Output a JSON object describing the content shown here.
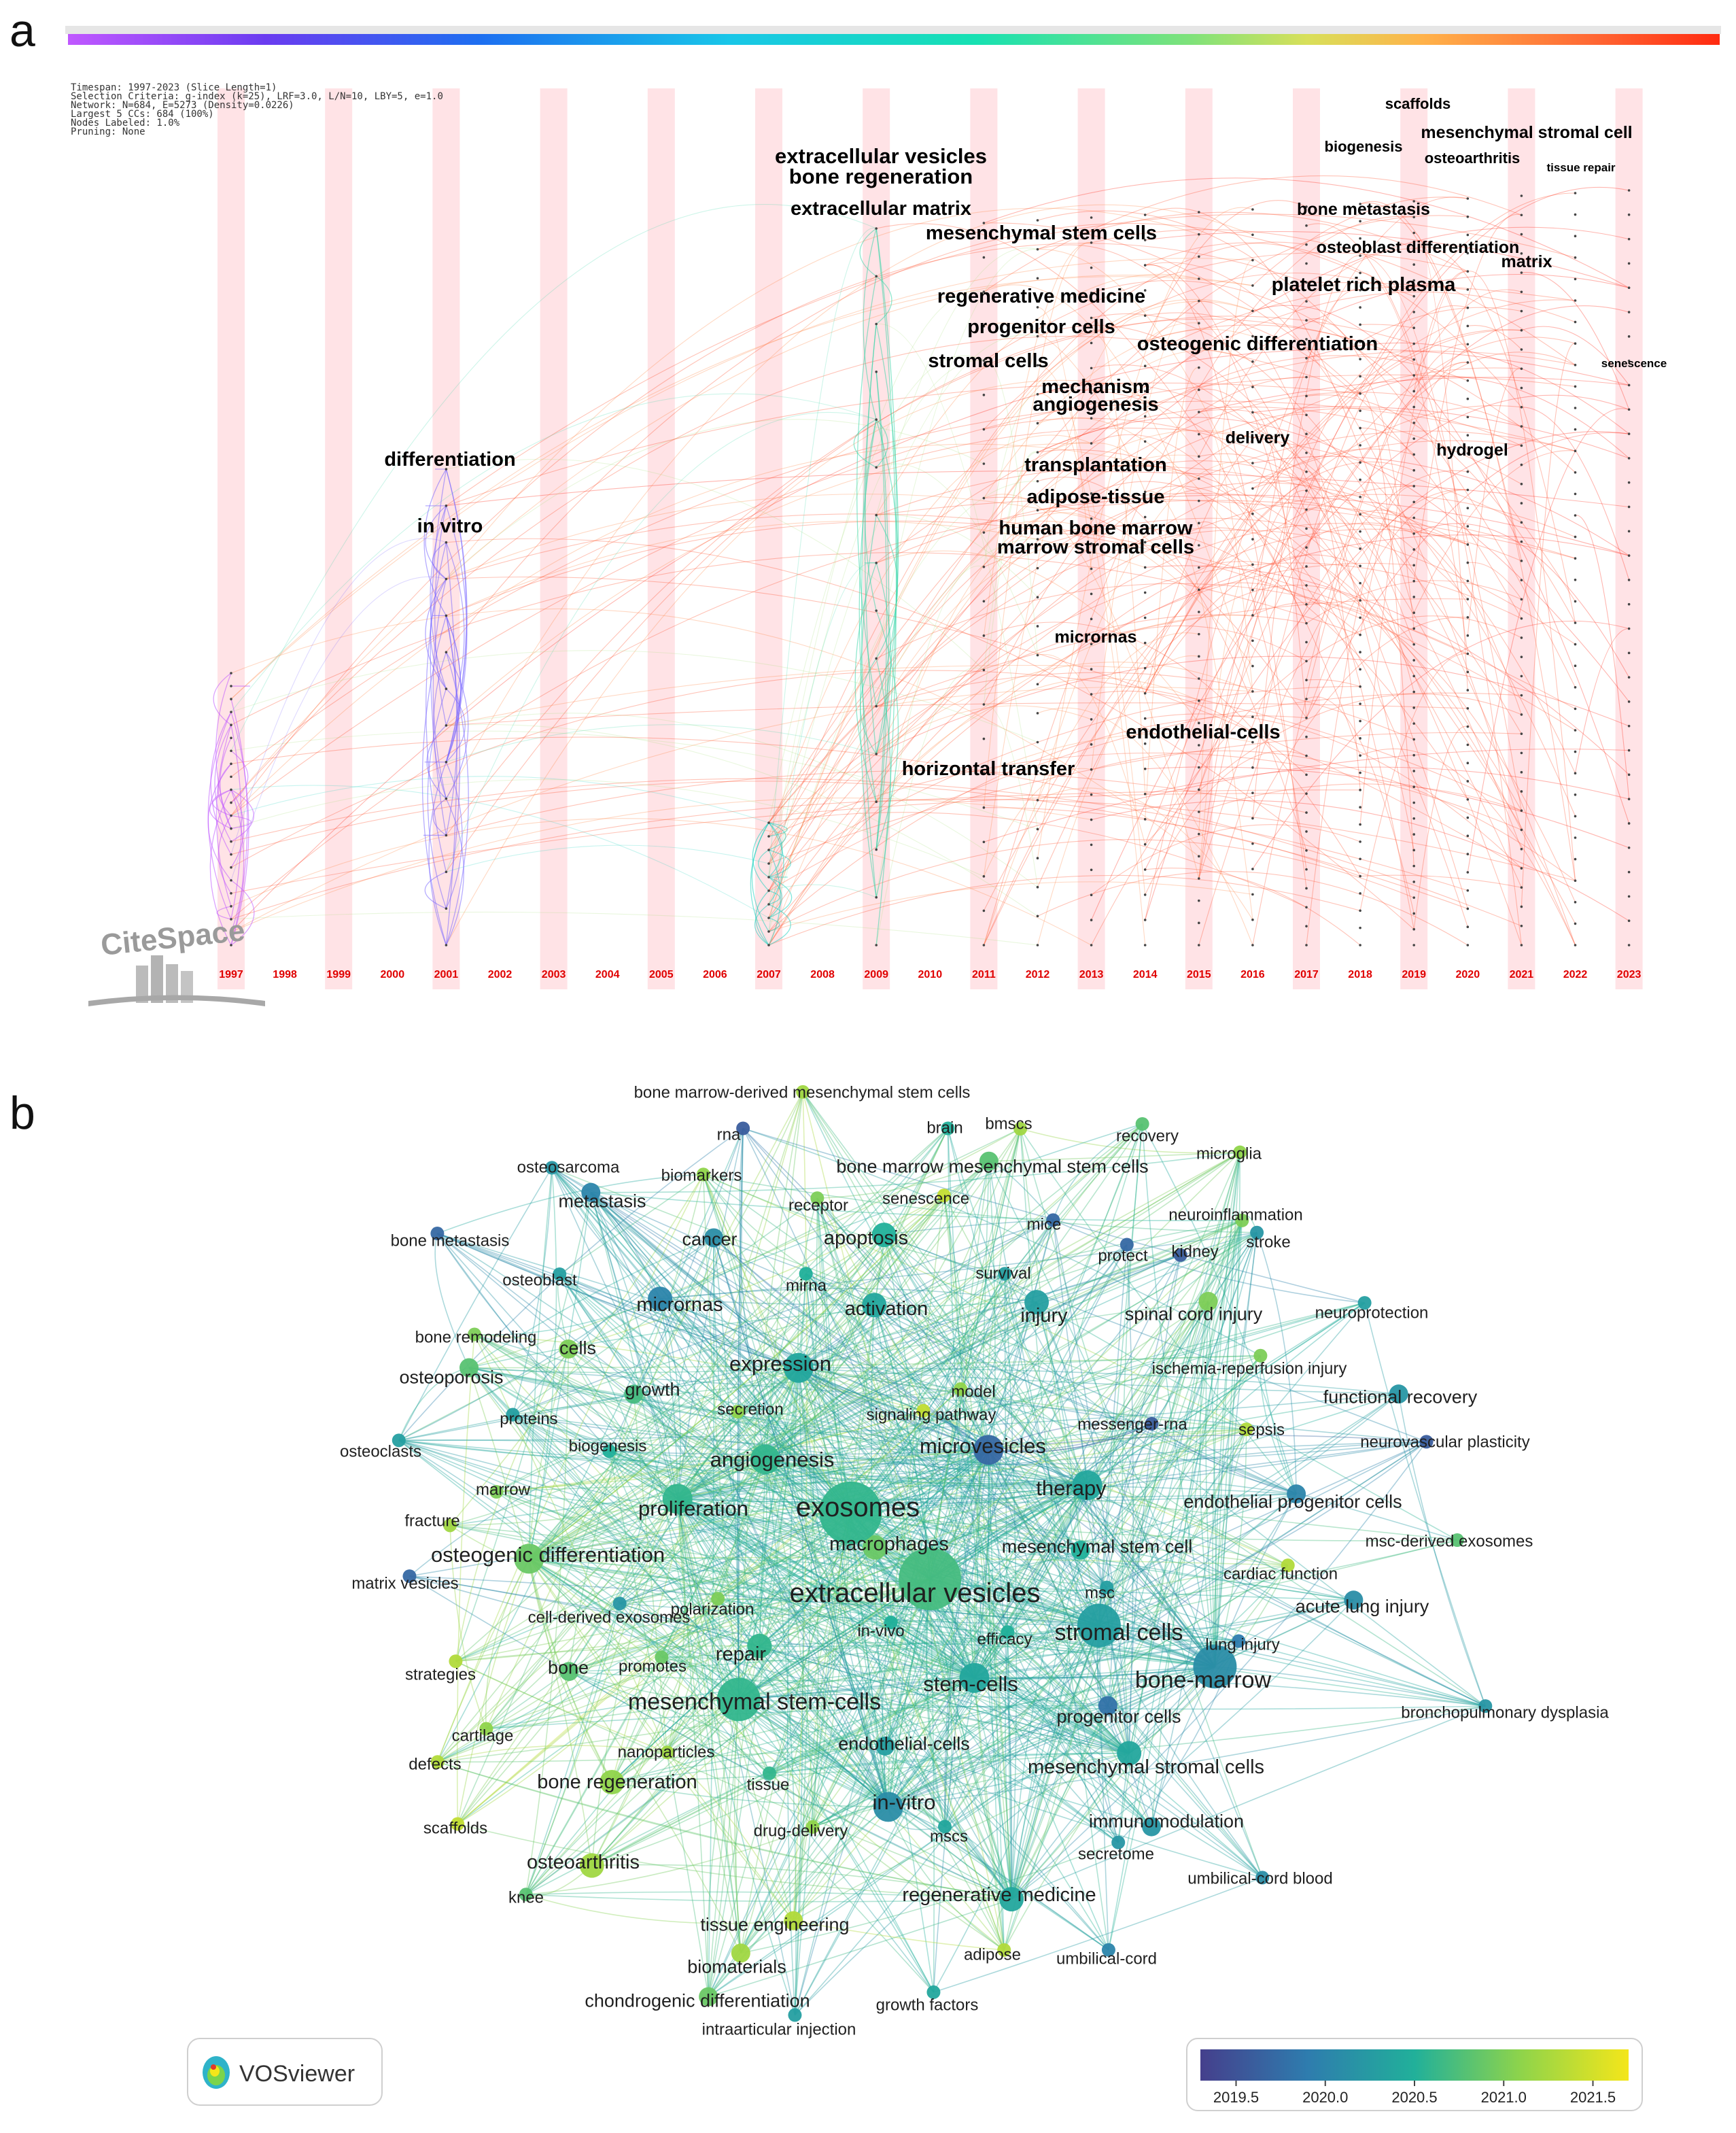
{
  "panels": {
    "a": {
      "letter": "a",
      "tool": "CiteSpace"
    },
    "b": {
      "letter": "b",
      "tool": "VOSviewer"
    }
  },
  "citespace": {
    "meta": [
      "Timespan: 1997-2023 (Slice Length=1)",
      "Selection Criteria: g-index (k=25), LRF=3.0, L/N=10, LBY=5, e=1.0",
      "Network: N=684, E=5273 (Density=0.0226)",
      "Largest 5 CCs: 684 (100%)",
      "Nodes Labeled: 1.0%",
      "Pruning: None"
    ],
    "years": [
      "1997",
      "1998",
      "1999",
      "2000",
      "2001",
      "2002",
      "2003",
      "2004",
      "2005",
      "2006",
      "2007",
      "2008",
      "2009",
      "2010",
      "2011",
      "2012",
      "2013",
      "2014",
      "2015",
      "2016",
      "2017",
      "2018",
      "2019",
      "2020",
      "2021",
      "2022",
      "2023"
    ],
    "keywords": [
      {
        "text": "extracellular vesicles",
        "size": "xl"
      },
      {
        "text": "bone regeneration",
        "size": "xl"
      },
      {
        "text": "extracellular matrix",
        "size": "l"
      },
      {
        "text": "mesenchymal stem cells",
        "size": "l"
      },
      {
        "text": "regenerative medicine",
        "size": "l"
      },
      {
        "text": "progenitor cells",
        "size": "l"
      },
      {
        "text": "stromal cells",
        "size": "l"
      },
      {
        "text": "mechanism",
        "size": "l"
      },
      {
        "text": "angiogenesis",
        "size": "l"
      },
      {
        "text": "transplantation",
        "size": "l"
      },
      {
        "text": "adipose-tissue",
        "size": "l"
      },
      {
        "text": "human bone marrow",
        "size": "l"
      },
      {
        "text": "marrow stromal cells",
        "size": "l"
      },
      {
        "text": "micrornas",
        "size": "m"
      },
      {
        "text": "endothelial-cells",
        "size": "l"
      },
      {
        "text": "horizontal transfer",
        "size": "l"
      },
      {
        "text": "differentiation",
        "size": "l"
      },
      {
        "text": "in vitro",
        "size": "l"
      },
      {
        "text": "scaffolds",
        "size": "s"
      },
      {
        "text": "biogenesis",
        "size": "s"
      },
      {
        "text": "mesenchymal stromal cell",
        "size": "m"
      },
      {
        "text": "osteoarthritis",
        "size": "s"
      },
      {
        "text": "tissue repair",
        "size": "xs"
      },
      {
        "text": "bone metastasis",
        "size": "m"
      },
      {
        "text": "osteoblast differentiation",
        "size": "m"
      },
      {
        "text": "matrix",
        "size": "m"
      },
      {
        "text": "platelet rich plasma",
        "size": "l"
      },
      {
        "text": "osteogenic differentiation",
        "size": "l"
      },
      {
        "text": "senescence",
        "size": "xs"
      },
      {
        "text": "delivery",
        "size": "m"
      },
      {
        "text": "hydrogel",
        "size": "m"
      }
    ],
    "colors": {
      "slice_band": "#ffe3e6",
      "year_label": "#e00000",
      "recent_links": "#ff3a1a",
      "early_links": "#8e7bff"
    }
  },
  "vosviewer": {
    "logo_text": "VOSviewer",
    "colorbar": {
      "ticks": [
        "2019.5",
        "2020.0",
        "2020.5",
        "2021.0",
        "2021.5"
      ],
      "range": [
        2019.3,
        2021.7
      ]
    },
    "terms": [
      {
        "label": "exosomes",
        "year": 2020.6,
        "weight": 10
      },
      {
        "label": "extracellular vesicles",
        "year": 2020.7,
        "weight": 10
      },
      {
        "label": "stromal cells",
        "year": 2020.3,
        "weight": 7
      },
      {
        "label": "bone-marrow",
        "year": 2020.1,
        "weight": 7
      },
      {
        "label": "mesenchymal stem-cells",
        "year": 2020.6,
        "weight": 7
      },
      {
        "label": "stem-cells",
        "year": 2020.4,
        "weight": 5
      },
      {
        "label": "in-vitro",
        "year": 2020.1,
        "weight": 5
      },
      {
        "label": "expression",
        "year": 2020.4,
        "weight": 5
      },
      {
        "label": "angiogenesis",
        "year": 2020.6,
        "weight": 6
      },
      {
        "label": "proliferation",
        "year": 2020.6,
        "weight": 5
      },
      {
        "label": "osteogenic differentiation",
        "year": 2020.9,
        "weight": 5
      },
      {
        "label": "microvesicles",
        "year": 2019.7,
        "weight": 5
      },
      {
        "label": "therapy",
        "year": 2020.4,
        "weight": 5
      },
      {
        "label": "mesenchymal stromal cells",
        "year": 2020.4,
        "weight": 4
      },
      {
        "label": "regenerative medicine",
        "year": 2020.4,
        "weight": 4
      },
      {
        "label": "bone regeneration",
        "year": 2021.1,
        "weight": 4
      },
      {
        "label": "osteoarthritis",
        "year": 2021.2,
        "weight": 4
      },
      {
        "label": "repair",
        "year": 2020.6,
        "weight": 4
      },
      {
        "label": "apoptosis",
        "year": 2020.5,
        "weight": 4
      },
      {
        "label": "micrornas",
        "year": 2020.0,
        "weight": 4
      },
      {
        "label": "activation",
        "year": 2020.4,
        "weight": 4
      },
      {
        "label": "injury",
        "year": 2020.3,
        "weight": 4
      },
      {
        "label": "macrophages",
        "year": 2020.9,
        "weight": 4
      },
      {
        "label": "mesenchymal stem cell",
        "year": 2020.5,
        "weight": 3
      },
      {
        "label": "progenitor cells",
        "year": 2019.8,
        "weight": 3
      },
      {
        "label": "endothelial-cells",
        "year": 2020.3,
        "weight": 3
      },
      {
        "label": "endothelial progenitor cells",
        "year": 2020.0,
        "weight": 3
      },
      {
        "label": "functional recovery",
        "year": 2020.2,
        "weight": 3
      },
      {
        "label": "acute lung injury",
        "year": 2020.1,
        "weight": 3
      },
      {
        "label": "osteoporosis",
        "year": 2020.8,
        "weight": 3
      },
      {
        "label": "cancer",
        "year": 2020.1,
        "weight": 3
      },
      {
        "label": "metastasis",
        "year": 2020.0,
        "weight": 3
      },
      {
        "label": "bone",
        "year": 2020.8,
        "weight": 3
      },
      {
        "label": "tissue engineering",
        "year": 2021.3,
        "weight": 3
      },
      {
        "label": "biomaterials",
        "year": 2021.2,
        "weight": 3
      },
      {
        "label": "chondrogenic differentiation",
        "year": 2020.9,
        "weight": 3
      },
      {
        "label": "growth",
        "year": 2020.7,
        "weight": 3
      },
      {
        "label": "cells",
        "year": 2021.0,
        "weight": 3
      },
      {
        "label": "bone marrow mesenchymal stem cells",
        "year": 2020.8,
        "weight": 3
      },
      {
        "label": "spinal cord injury",
        "year": 2021.0,
        "weight": 3
      },
      {
        "label": "immunomodulation",
        "year": 2020.2,
        "weight": 3
      },
      {
        "label": "secretome",
        "year": 2020.2,
        "weight": 2
      },
      {
        "label": "umbilical-cord blood",
        "year": 2020.1,
        "weight": 2
      },
      {
        "label": "umbilical-cord",
        "year": 2020.0,
        "weight": 2
      },
      {
        "label": "mscs",
        "year": 2020.4,
        "weight": 2
      },
      {
        "label": "drug-delivery",
        "year": 2021.1,
        "weight": 2
      },
      {
        "label": "tissue",
        "year": 2020.6,
        "weight": 2
      },
      {
        "label": "nanoparticles",
        "year": 2021.2,
        "weight": 2
      },
      {
        "label": "promotes",
        "year": 2020.9,
        "weight": 2
      },
      {
        "label": "polarization",
        "year": 2021.0,
        "weight": 2
      },
      {
        "label": "in-vivo",
        "year": 2020.5,
        "weight": 2
      },
      {
        "label": "efficacy",
        "year": 2020.5,
        "weight": 2
      },
      {
        "label": "msc",
        "year": 2020.3,
        "weight": 2
      },
      {
        "label": "cardiac function",
        "year": 2021.3,
        "weight": 2
      },
      {
        "label": "msc-derived exosomes",
        "year": 2020.8,
        "weight": 2
      },
      {
        "label": "lung injury",
        "year": 2019.9,
        "weight": 2
      },
      {
        "label": "bronchopulmonary dysplasia",
        "year": 2020.2,
        "weight": 2
      },
      {
        "label": "sepsis",
        "year": 2021.3,
        "weight": 2
      },
      {
        "label": "neurovascular plasticity",
        "year": 2019.6,
        "weight": 2
      },
      {
        "label": "messenger-rna",
        "year": 2019.6,
        "weight": 2
      },
      {
        "label": "ischemia-reperfusion injury",
        "year": 2021.0,
        "weight": 2
      },
      {
        "label": "neuroprotection",
        "year": 2020.3,
        "weight": 2
      },
      {
        "label": "stroke",
        "year": 2020.2,
        "weight": 2
      },
      {
        "label": "kidney",
        "year": 2019.6,
        "weight": 2
      },
      {
        "label": "protect",
        "year": 2019.7,
        "weight": 2
      },
      {
        "label": "neuroinflammation",
        "year": 2021.0,
        "weight": 2
      },
      {
        "label": "recovery",
        "year": 2020.8,
        "weight": 2
      },
      {
        "label": "microglia",
        "year": 2021.1,
        "weight": 2
      },
      {
        "label": "mice",
        "year": 2019.7,
        "weight": 2
      },
      {
        "label": "survival",
        "year": 2020.3,
        "weight": 2
      },
      {
        "label": "bmscs",
        "year": 2021.2,
        "weight": 2
      },
      {
        "label": "brain",
        "year": 2020.5,
        "weight": 2
      },
      {
        "label": "senescence",
        "year": 2021.4,
        "weight": 2
      },
      {
        "label": "receptor",
        "year": 2021.0,
        "weight": 2
      },
      {
        "label": "rna",
        "year": 2019.6,
        "weight": 2
      },
      {
        "label": "bone marrow-derived mesenchymal stem cells",
        "year": 2021.2,
        "weight": 2
      },
      {
        "label": "biomarkers",
        "year": 2021.1,
        "weight": 2
      },
      {
        "label": "osteosarcoma",
        "year": 2020.2,
        "weight": 2
      },
      {
        "label": "bone metastasis",
        "year": 2019.7,
        "weight": 2
      },
      {
        "label": "osteoblast",
        "year": 2020.3,
        "weight": 2
      },
      {
        "label": "bone remodeling",
        "year": 2021.0,
        "weight": 2
      },
      {
        "label": "mirna",
        "year": 2020.5,
        "weight": 2
      },
      {
        "label": "secretion",
        "year": 2021.1,
        "weight": 2
      },
      {
        "label": "model",
        "year": 2021.1,
        "weight": 2
      },
      {
        "label": "signaling pathway",
        "year": 2021.4,
        "weight": 2
      },
      {
        "label": "proteins",
        "year": 2020.3,
        "weight": 2
      },
      {
        "label": "biogenesis",
        "year": 2020.5,
        "weight": 2
      },
      {
        "label": "osteoclasts",
        "year": 2020.3,
        "weight": 2
      },
      {
        "label": "marrow",
        "year": 2021.0,
        "weight": 2
      },
      {
        "label": "fracture",
        "year": 2021.2,
        "weight": 2
      },
      {
        "label": "matrix vesicles",
        "year": 2019.7,
        "weight": 2
      },
      {
        "label": "cell-derived exosomes",
        "year": 2020.2,
        "weight": 2
      },
      {
        "label": "strategies",
        "year": 2021.3,
        "weight": 2
      },
      {
        "label": "cartilage",
        "year": 2021.1,
        "weight": 2
      },
      {
        "label": "defects",
        "year": 2021.3,
        "weight": 2
      },
      {
        "label": "scaffolds",
        "year": 2021.4,
        "weight": 2
      },
      {
        "label": "knee",
        "year": 2020.8,
        "weight": 2
      },
      {
        "label": "adipose",
        "year": 2021.3,
        "weight": 2
      },
      {
        "label": "growth factors",
        "year": 2020.4,
        "weight": 2
      },
      {
        "label": "intraarticular injection",
        "year": 2020.3,
        "weight": 2
      }
    ]
  }
}
